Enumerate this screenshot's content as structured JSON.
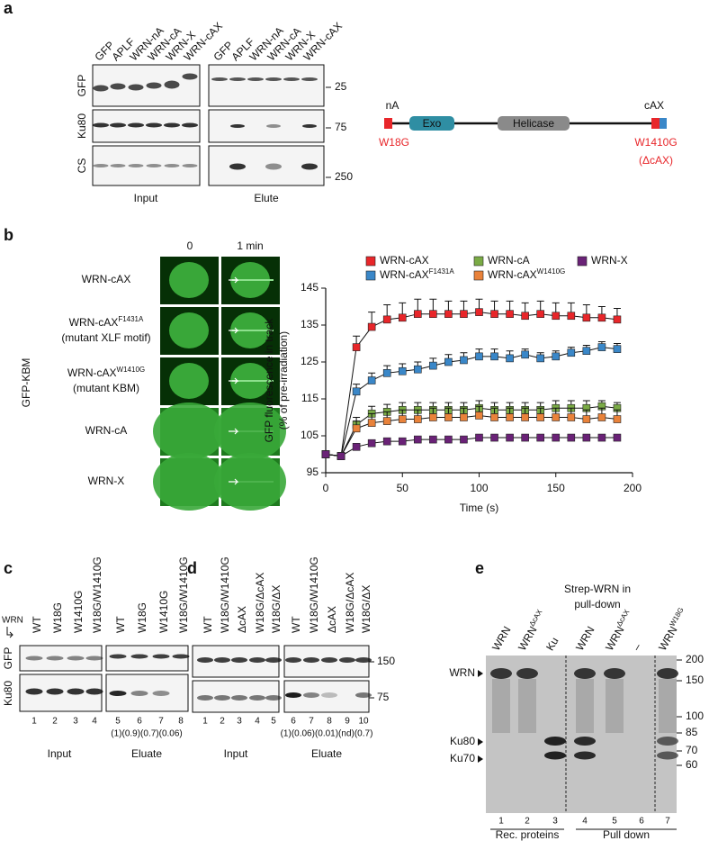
{
  "panel_a": {
    "letter": "a",
    "input_lanes": [
      "GFP",
      "APLF",
      "WRN-nA",
      "WRN-cA",
      "WRN-X",
      "WRN-cAX"
    ],
    "elute_lanes": [
      "GFP",
      "APLF",
      "WRN-nA",
      "WRN-cA",
      "WRN-X",
      "WRN-cAX"
    ],
    "rows": [
      "GFP",
      "Ku80",
      "CS"
    ],
    "markers": [
      "25",
      "75",
      "250"
    ],
    "input_label": "Input",
    "elute_label": "Elute",
    "diagram": {
      "n_label": "nA",
      "c_label": "cAX",
      "domains": [
        "Exo",
        "Helicase"
      ],
      "n_mutation": "W18G",
      "c_mutation": "W1410G",
      "c_deletion": "(ΔcAX)"
    }
  },
  "panel_b": {
    "letter": "b",
    "timepoints": [
      "0",
      "1 min"
    ],
    "side_label": "GFP-KBM",
    "rows": [
      {
        "name": "WRN-cAX"
      },
      {
        "name": "WRN-cAX",
        "sup": "F1431A",
        "note": "(mutant XLF motif)"
      },
      {
        "name": "WRN-cAX",
        "sup": "W1410G",
        "note": "(mutant KBM)"
      },
      {
        "name": "WRN-cA"
      },
      {
        "name": "WRN-X"
      }
    ]
  },
  "chart_data": {
    "type": "line",
    "xlabel": "Time (s)",
    "ylabel": [
      "GFP fluorescence in track",
      "(% of pre-irradiation)"
    ],
    "x": [
      0,
      10,
      20,
      30,
      40,
      50,
      60,
      70,
      80,
      90,
      100,
      110,
      120,
      130,
      140,
      150,
      160,
      170,
      180,
      190
    ],
    "xlim": [
      0,
      200
    ],
    "xticks": [
      0,
      50,
      100,
      150,
      200
    ],
    "ylim": [
      95,
      145
    ],
    "yticks": [
      95,
      105,
      115,
      125,
      135,
      145
    ],
    "marker": "square",
    "series": [
      {
        "name": "WRN-cAX",
        "color": "#e8262a",
        "values": [
          100,
          99.5,
          129,
          134.5,
          136.5,
          137,
          138,
          138,
          138,
          138,
          138.5,
          138,
          138,
          137.5,
          138,
          137.5,
          137.5,
          137,
          137,
          136.5
        ],
        "errors": [
          0.5,
          0.5,
          3,
          4,
          4,
          4,
          4,
          4,
          3.5,
          3.5,
          3.5,
          3.5,
          3.5,
          3.5,
          3.5,
          3.5,
          3.5,
          3.5,
          3,
          3
        ]
      },
      {
        "name": "WRN-cAX",
        "sup": "F1431A",
        "color": "#3a87c8",
        "values": [
          100,
          99.5,
          117,
          120,
          122,
          122.5,
          123,
          124,
          125,
          125.5,
          126.5,
          126.5,
          126,
          127,
          126,
          126.5,
          127.5,
          128,
          129,
          128.5
        ],
        "errors": [
          0.5,
          0.5,
          2,
          2,
          2,
          2,
          2,
          2,
          2,
          2,
          2,
          2,
          2,
          1.5,
          1.5,
          1.5,
          1.5,
          1.5,
          1.5,
          1.5
        ]
      },
      {
        "name": "WRN-cA",
        "color": "#7aab45",
        "values": [
          100,
          99.5,
          108,
          111,
          111.5,
          112,
          112,
          112,
          112,
          112,
          112.5,
          112,
          112,
          112,
          112,
          112.5,
          112.5,
          112.5,
          113,
          112.5
        ],
        "errors": [
          0.5,
          0.5,
          2,
          2,
          2,
          2,
          2,
          2,
          2,
          2,
          2,
          2,
          2,
          2,
          2,
          2,
          2,
          2,
          1.5,
          1.5
        ]
      },
      {
        "name": "WRN-cAX",
        "sup": "W1410G",
        "color": "#e9823a",
        "values": [
          100,
          99.5,
          107,
          108.5,
          109,
          109.5,
          109.5,
          110,
          110,
          110,
          110.5,
          110,
          110,
          110,
          110,
          110,
          110,
          109.5,
          110,
          109.5
        ],
        "errors": [
          0.5,
          0.5,
          2,
          2.5,
          2.5,
          2.5,
          2.5,
          2.5,
          2.5,
          2.5,
          2.5,
          2.5,
          2.5,
          2.5,
          2.5,
          2.5,
          2.5,
          2.5,
          2.5,
          2.5
        ]
      },
      {
        "name": "WRN-X",
        "color": "#6a2277",
        "values": [
          100,
          99.5,
          102,
          103,
          103.5,
          103.5,
          104,
          104,
          104,
          104,
          104.5,
          104.5,
          104.5,
          104.5,
          104.5,
          104.5,
          104.5,
          104.5,
          104.5,
          104.5
        ],
        "errors": [
          0.5,
          0.5,
          0.5,
          0.5,
          0.5,
          0.5,
          0.5,
          0.5,
          0.5,
          0.5,
          0.5,
          0.5,
          0.5,
          0.5,
          0.5,
          0.5,
          0.5,
          0.5,
          0.5,
          0.5
        ]
      }
    ]
  },
  "panel_c": {
    "letter": "c",
    "protein_label": "WRN",
    "lanes": [
      "WT",
      "W18G",
      "W1410G",
      "W18G/W1410G",
      "WT",
      "W18G",
      "W1410G",
      "W18G/W1410G"
    ],
    "rows": [
      "GFP",
      "Ku80"
    ],
    "lane_numbers": [
      "1",
      "2",
      "3",
      "4",
      "5",
      "6",
      "7",
      "8"
    ],
    "ratios": "(1)(0.9)(0.7)(0.06)",
    "input_label": "Input",
    "eluate_label": "Eluate"
  },
  "panel_d": {
    "letter": "d",
    "lanes": [
      "WT",
      "W18G/W1410G",
      "ΔcAX",
      "W18G/ΔcAX",
      "W18G/ΔX",
      "WT",
      "W18G/W1410G",
      "ΔcAX",
      "W18G/ΔcAX",
      "W18G/ΔX"
    ],
    "markers": [
      "150",
      "75"
    ],
    "lane_numbers": [
      "1",
      "2",
      "3",
      "4",
      "5",
      "6",
      "7",
      "8",
      "9",
      "10"
    ],
    "ratios": "(1)(0.06)(0.01)(nd)(0.7)",
    "input_label": "Input",
    "eluate_label": "Eluate"
  },
  "panel_e": {
    "letter": "e",
    "header": [
      "Strep-WRN in",
      "pull-down"
    ],
    "lanes": [
      {
        "name": "WRN"
      },
      {
        "name": "WRN",
        "sup": "ΔcAX"
      },
      {
        "name": "Ku"
      },
      {
        "name": "WRN"
      },
      {
        "name": "WRN",
        "sup": "ΔcAX"
      },
      {
        "name": "–"
      },
      {
        "name": "WRN",
        "sup": "W18G"
      }
    ],
    "band_labels": [
      "WRN",
      "Ku80",
      "Ku70"
    ],
    "markers": [
      "200",
      "150",
      "100",
      "85",
      "70",
      "60"
    ],
    "lane_numbers": [
      "1",
      "2",
      "3",
      "4",
      "5",
      "6",
      "7"
    ],
    "groups": [
      "Rec. proteins",
      "Pull down"
    ]
  }
}
